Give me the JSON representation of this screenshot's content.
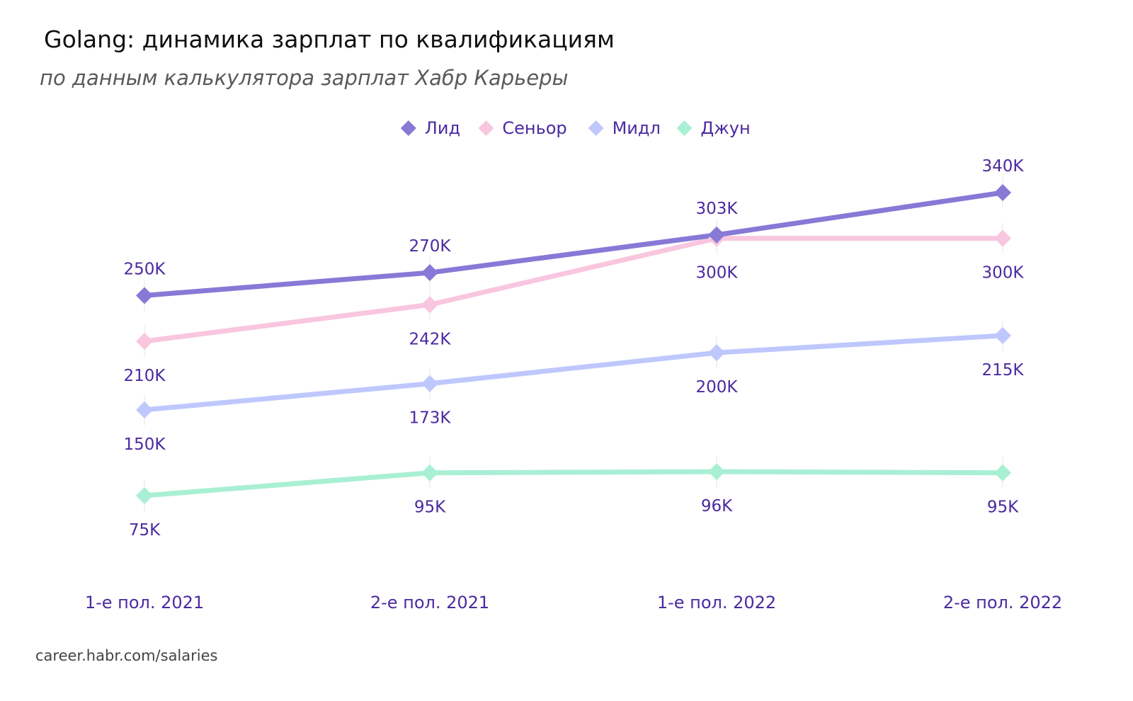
{
  "title": "Golang: динамика зарплат по квалификациям",
  "subtitle": "по данным калькулятора зарплат Хабр Карьеры",
  "source": "career.habr.com/salaries",
  "chart_data": {
    "type": "line",
    "categories": [
      "1-е пол. 2021",
      "2-е пол. 2021",
      "1-е пол. 2022",
      "2-е пол. 2022"
    ],
    "marker": "diamond",
    "legend_position": "top-center",
    "grid": false,
    "y_axis_visible": false,
    "series": [
      {
        "name": "Лид",
        "color": "#8779d6",
        "values": [
          250,
          270,
          303,
          340
        ],
        "labels": [
          "250K",
          "270K",
          "303K",
          "340K"
        ],
        "label_position": [
          "above",
          "above",
          "above",
          "above"
        ]
      },
      {
        "name": "Сеньор",
        "color": "#f9c6df",
        "values": [
          210,
          242,
          300,
          300
        ],
        "labels": [
          "210K",
          "242K",
          "300K",
          "300K"
        ],
        "label_position": [
          "below",
          "below",
          "below",
          "below"
        ]
      },
      {
        "name": "Мидл",
        "color": "#bec8fd",
        "values": [
          150,
          173,
          200,
          215
        ],
        "labels": [
          "150K",
          "173K",
          "200K",
          "215K"
        ],
        "label_position": [
          "below",
          "below",
          "below",
          "below"
        ]
      },
      {
        "name": "Джун",
        "color": "#a9efd4",
        "values": [
          75,
          95,
          96,
          95
        ],
        "labels": [
          "75K",
          "95K",
          "96K",
          "95K"
        ],
        "label_position": [
          "below",
          "below",
          "below",
          "below"
        ]
      }
    ]
  }
}
